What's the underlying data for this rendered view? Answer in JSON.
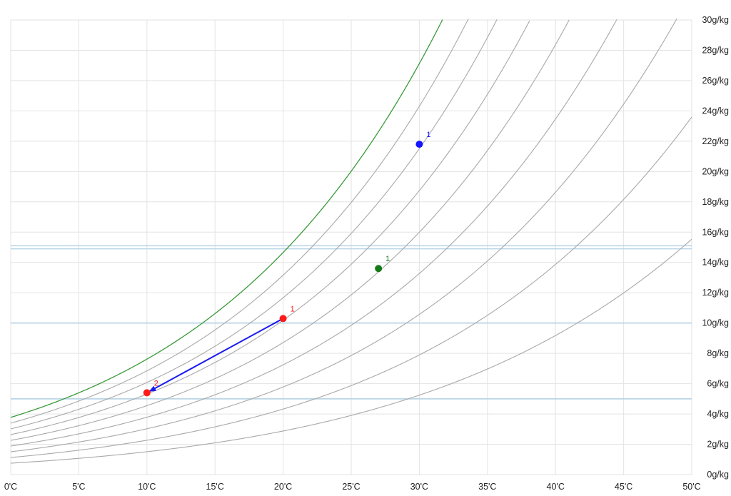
{
  "chart_data": {
    "type": "line",
    "title": "",
    "xlabel": "",
    "ylabel": "",
    "xlim": [
      0,
      50
    ],
    "ylim": [
      0,
      30
    ],
    "grid": true,
    "x_ticks": [
      "0'C",
      "5'C",
      "10'C",
      "15'C",
      "20'C",
      "25'C",
      "30'C",
      "35'C",
      "40'C",
      "45'C",
      "50'C"
    ],
    "y_ticks": [
      "0g/kg",
      "2g/kg",
      "4g/kg",
      "6g/kg",
      "8g/kg",
      "10g/kg",
      "12g/kg",
      "14g/kg",
      "16g/kg",
      "18g/kg",
      "20g/kg",
      "22g/kg",
      "24g/kg",
      "26g/kg",
      "28g/kg",
      "30g/kg"
    ],
    "rh_curves": [
      {
        "rh": 100,
        "color": "#3a9a3a"
      },
      {
        "rh": 90,
        "color": "#a8a8a8"
      },
      {
        "rh": 80,
        "color": "#a8a8a8"
      },
      {
        "rh": 70,
        "color": "#a8a8a8"
      },
      {
        "rh": 60,
        "color": "#a8a8a8"
      },
      {
        "rh": 50,
        "color": "#a8a8a8"
      },
      {
        "rh": 40,
        "color": "#a8a8a8"
      },
      {
        "rh": 30,
        "color": "#a8a8a8"
      },
      {
        "rh": 20,
        "color": "#a8a8a8"
      }
    ],
    "horizontal_bands": [
      {
        "from": 14.9,
        "to": 15.1,
        "color": "#b9d4e6"
      },
      {
        "from": 10.0,
        "to": 10.0,
        "color": "#b9d4e6"
      },
      {
        "from": 5.0,
        "to": 5.0,
        "color": "#b9d4e6"
      }
    ],
    "points": [
      {
        "label": "1",
        "x": 30.0,
        "y": 21.8,
        "color": "#1515ff"
      },
      {
        "label": "1",
        "x": 27.0,
        "y": 13.6,
        "color": "#157a15"
      },
      {
        "label": "1",
        "x": 20.0,
        "y": 10.3,
        "color": "#ff1a1a"
      },
      {
        "label": "2",
        "x": 10.0,
        "y": 5.4,
        "color": "#ff1a1a"
      }
    ],
    "arrow": {
      "from": [
        20.0,
        10.3
      ],
      "to": [
        10.0,
        5.4
      ],
      "color": "#1a1aee"
    }
  }
}
